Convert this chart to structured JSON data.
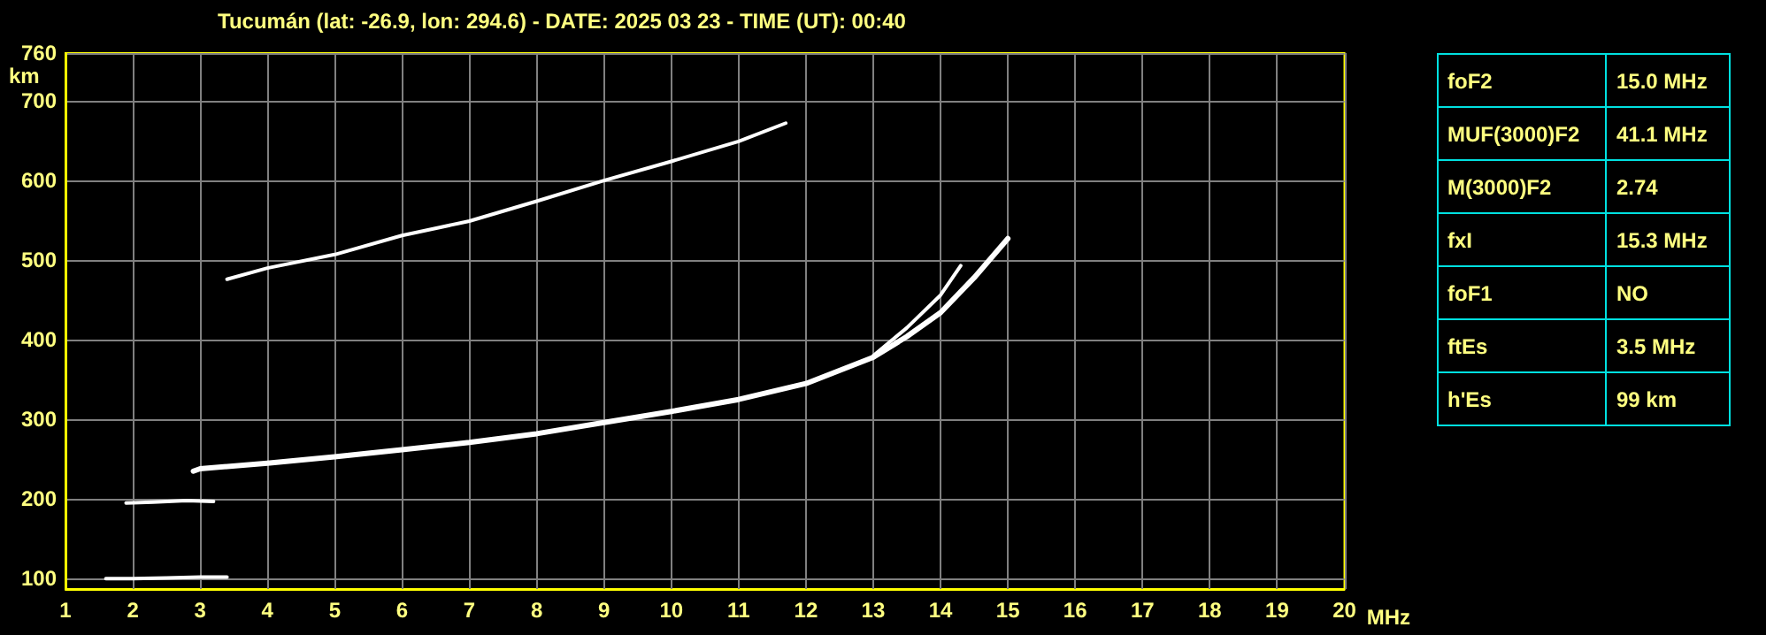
{
  "chart_data": [
    {
      "type": "line",
      "title": "Tucumán (lat: -26.9, lon: 294.6) - DATE: 2025 03 23 - TIME (UT): 00:40",
      "xlabel": "MHz",
      "ylabel": "km",
      "xlim": [
        1,
        20
      ],
      "xticks": [
        1,
        2,
        3,
        4,
        5,
        6,
        7,
        8,
        9,
        10,
        11,
        12,
        13,
        14,
        15,
        16,
        17,
        18,
        19,
        20
      ],
      "ylim": [
        87,
        760
      ],
      "yticks": [
        100,
        200,
        300,
        400,
        500,
        600,
        700,
        760
      ],
      "grid": true,
      "marker": "none",
      "line_style": "solid",
      "series": [
        {
          "color": "#ffffff",
          "x": [
            1.6,
            2.0,
            2.5,
            3.0,
            3.4
          ],
          "values": [
            100,
            100,
            101,
            102,
            102
          ]
        },
        {
          "color": "#ffffff",
          "x": [
            1.9,
            2.3,
            2.8,
            3.2
          ],
          "values": [
            195,
            196,
            198,
            197
          ]
        },
        {
          "color": "#ffffff",
          "x": [
            2.9,
            3,
            4,
            5,
            6,
            7,
            8,
            9,
            10,
            11,
            12,
            13,
            13.5,
            14,
            14.5,
            15
          ],
          "values": [
            235,
            238,
            245,
            253,
            262,
            271,
            282,
            296,
            310,
            325,
            345,
            378,
            404,
            434,
            478,
            527
          ]
        },
        {
          "color": "#ffffff",
          "x": [
            13,
            13.5,
            14,
            14.3
          ],
          "values": [
            380,
            415,
            456,
            493
          ]
        },
        {
          "color": "#ffffff",
          "x": [
            3.4,
            4,
            5,
            6,
            7,
            8,
            9,
            10,
            11,
            11.7
          ],
          "values": [
            476,
            490,
            507,
            531,
            549,
            574,
            600,
            624,
            649,
            672
          ]
        }
      ]
    },
    {
      "type": "other",
      "annotations": [
        "foF2",
        "15.0 MHz",
        "MUF(3000)F2",
        "41.1 MHz",
        "M(3000)F2",
        "2.74",
        "fxI",
        "15.3 MHz",
        "foF1",
        "NO",
        "ftEs",
        "3.5 MHz",
        "h'Es",
        "99 km"
      ]
    }
  ]
}
